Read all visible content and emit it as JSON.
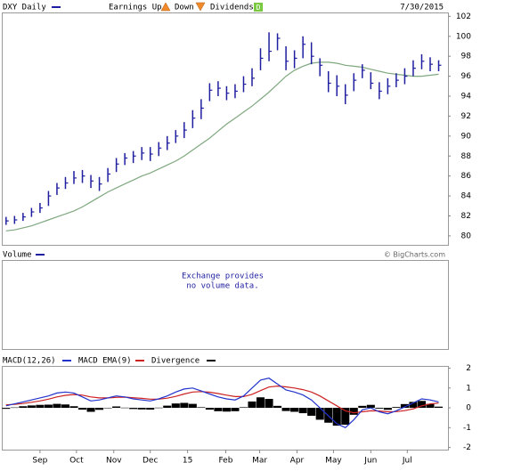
{
  "chart_data": [
    {
      "type": "ohlc",
      "title": "DXY Daily",
      "earnings_label": "Earnings Up",
      "down_label": "Down",
      "dividends_label": "Dividends",
      "dividends_icon": "D",
      "date": "7/30/2015",
      "credit": "© BigCharts.com",
      "x": [
        0,
        1,
        2,
        3,
        4,
        5,
        6,
        7,
        8,
        9,
        10,
        11,
        12,
        13,
        14,
        15,
        16,
        17,
        18,
        19,
        20,
        21,
        22,
        23,
        24,
        25,
        26,
        27,
        28,
        29,
        30,
        31,
        32,
        33,
        34,
        35,
        36,
        37,
        38,
        39,
        40,
        41,
        42,
        43,
        44,
        45,
        46,
        47,
        48,
        49,
        50,
        51
      ],
      "xlim": [
        -0.4,
        52.1
      ],
      "ylim": [
        79.1,
        102.3
      ],
      "yticks": [
        80,
        82,
        84,
        86,
        88,
        90,
        92,
        94,
        96,
        98,
        100,
        102
      ],
      "series": [
        {
          "name": "DXY Daily",
          "color": "#1e1ea0",
          "high": [
            81.9,
            82.0,
            82.3,
            82.8,
            83.3,
            84.5,
            85.3,
            85.9,
            86.5,
            86.6,
            86.1,
            85.9,
            86.8,
            87.8,
            88.3,
            88.5,
            88.9,
            88.9,
            89.4,
            90.0,
            90.6,
            91.4,
            92.6,
            93.7,
            95.3,
            95.5,
            95.0,
            95.2,
            96.0,
            96.8,
            98.8,
            100.4,
            100.3,
            99.0,
            98.6,
            100.0,
            99.4,
            97.8,
            96.5,
            96.1,
            95.2,
            96.3,
            97.2,
            96.4,
            95.4,
            95.8,
            96.3,
            96.8,
            97.6,
            98.2,
            97.9,
            97.6
          ],
          "low": [
            81.1,
            81.2,
            81.5,
            81.9,
            82.3,
            83.0,
            84.1,
            84.7,
            85.2,
            85.3,
            84.8,
            84.5,
            85.4,
            86.4,
            87.1,
            87.3,
            87.6,
            87.5,
            88.0,
            88.6,
            89.3,
            89.8,
            90.8,
            91.7,
            93.5,
            94.0,
            93.6,
            93.8,
            94.4,
            95.0,
            96.6,
            97.5,
            98.6,
            96.6,
            96.8,
            97.8,
            97.2,
            96.0,
            94.4,
            94.0,
            93.2,
            94.5,
            95.8,
            94.7,
            93.7,
            94.2,
            94.9,
            95.2,
            96.0,
            96.7,
            96.5,
            96.5
          ],
          "close": [
            81.5,
            81.6,
            81.9,
            82.4,
            82.8,
            84.0,
            84.8,
            85.3,
            85.8,
            86.0,
            85.5,
            85.2,
            86.2,
            87.2,
            87.8,
            88.0,
            88.3,
            88.2,
            88.8,
            89.3,
            90.0,
            90.6,
            91.8,
            92.8,
            94.6,
            94.8,
            94.3,
            94.5,
            95.2,
            95.8,
            97.8,
            98.5,
            99.8,
            97.5,
            97.8,
            99.2,
            98.0,
            97.1,
            95.3,
            95.0,
            94.1,
            95.6,
            96.6,
            95.3,
            94.5,
            95.0,
            95.6,
            96.0,
            96.8,
            97.5,
            97.2,
            97.1
          ]
        },
        {
          "color": "#7fa87f",
          "values": [
            80.5,
            80.6,
            80.8,
            81.0,
            81.3,
            81.6,
            81.9,
            82.2,
            82.5,
            82.9,
            83.4,
            83.9,
            84.4,
            84.8,
            85.2,
            85.6,
            86.0,
            86.3,
            86.7,
            87.1,
            87.5,
            88.0,
            88.6,
            89.2,
            89.8,
            90.5,
            91.2,
            91.8,
            92.4,
            93.0,
            93.7,
            94.4,
            95.2,
            96.0,
            96.6,
            97.0,
            97.3,
            97.4,
            97.4,
            97.3,
            97.1,
            97.0,
            96.9,
            96.7,
            96.5,
            96.3,
            96.2,
            96.1,
            96.0,
            96.0,
            96.1,
            96.2
          ]
        }
      ]
    },
    {
      "type": "volume",
      "title": "Volume",
      "color": "#1e1ea0",
      "note": [
        "Exchange provides",
        "no volume data."
      ]
    },
    {
      "type": "macd",
      "x": [
        0,
        1,
        2,
        3,
        4,
        5,
        6,
        7,
        8,
        9,
        10,
        11,
        12,
        13,
        14,
        15,
        16,
        17,
        18,
        19,
        20,
        21,
        22,
        23,
        24,
        25,
        26,
        27,
        28,
        29,
        30,
        31,
        32,
        33,
        34,
        35,
        36,
        37,
        38,
        39,
        40,
        41,
        42,
        43,
        44,
        45,
        46,
        47,
        48,
        49,
        50,
        51
      ],
      "xlim": [
        -0.4,
        52.1
      ],
      "ylim": [
        -2.11,
        2.07
      ],
      "yticks": [
        2,
        1,
        0,
        -1,
        -2
      ],
      "xticks": [
        {
          "value": 4,
          "label": "Sep"
        },
        {
          "value": 8.3,
          "label": "Oct"
        },
        {
          "value": 12.7,
          "label": "Nov"
        },
        {
          "value": 17,
          "label": "Dec"
        },
        {
          "value": 21.4,
          "label": "15"
        },
        {
          "value": 25.9,
          "label": "Feb"
        },
        {
          "value": 29.9,
          "label": "Mar"
        },
        {
          "value": 34.3,
          "label": "Apr"
        },
        {
          "value": 38.6,
          "label": "May"
        },
        {
          "value": 43,
          "label": "Jun"
        },
        {
          "value": 47.3,
          "label": "Jul"
        }
      ],
      "series": [
        {
          "name": "MACD(12,26)",
          "color": "#2233cc",
          "values": [
            0.1,
            0.2,
            0.3,
            0.4,
            0.5,
            0.6,
            0.75,
            0.8,
            0.75,
            0.55,
            0.35,
            0.4,
            0.5,
            0.6,
            0.55,
            0.45,
            0.4,
            0.35,
            0.45,
            0.6,
            0.8,
            0.95,
            1.0,
            0.85,
            0.7,
            0.55,
            0.45,
            0.4,
            0.6,
            1.0,
            1.4,
            1.5,
            1.2,
            0.9,
            0.8,
            0.65,
            0.4,
            0.0,
            -0.4,
            -0.8,
            -1.0,
            -0.6,
            -0.1,
            0.0,
            -0.2,
            -0.3,
            -0.15,
            0.05,
            0.25,
            0.45,
            0.4,
            0.3
          ]
        },
        {
          "name": "MACD EMA(9)",
          "color": "#cc2222",
          "values": [
            0.15,
            0.18,
            0.22,
            0.28,
            0.35,
            0.44,
            0.55,
            0.63,
            0.67,
            0.64,
            0.55,
            0.5,
            0.5,
            0.53,
            0.54,
            0.51,
            0.48,
            0.44,
            0.44,
            0.49,
            0.58,
            0.7,
            0.8,
            0.82,
            0.79,
            0.72,
            0.64,
            0.57,
            0.57,
            0.68,
            0.87,
            1.05,
            1.1,
            1.06,
            1.0,
            0.92,
            0.8,
            0.6,
            0.35,
            0.1,
            -0.15,
            -0.25,
            -0.2,
            -0.15,
            -0.16,
            -0.2,
            -0.19,
            -0.14,
            -0.05,
            0.1,
            0.2,
            0.24
          ]
        },
        {
          "name": "Divergence",
          "color": "#000000",
          "values": [
            -0.05,
            0.02,
            0.08,
            0.12,
            0.15,
            0.16,
            0.2,
            0.17,
            0.08,
            -0.09,
            -0.2,
            -0.1,
            0,
            0.07,
            0.01,
            -0.06,
            -0.08,
            -0.09,
            0.01,
            0.11,
            0.22,
            0.25,
            0.2,
            0.03,
            -0.09,
            -0.17,
            -0.19,
            -0.17,
            0.03,
            0.32,
            0.53,
            0.45,
            0.1,
            -0.16,
            -0.2,
            -0.27,
            -0.4,
            -0.6,
            -0.75,
            -0.9,
            -0.85,
            -0.35,
            0.1,
            0.15,
            -0.04,
            -0.1,
            0.04,
            0.19,
            0.3,
            0.35,
            0.2,
            0.06
          ]
        }
      ]
    }
  ]
}
